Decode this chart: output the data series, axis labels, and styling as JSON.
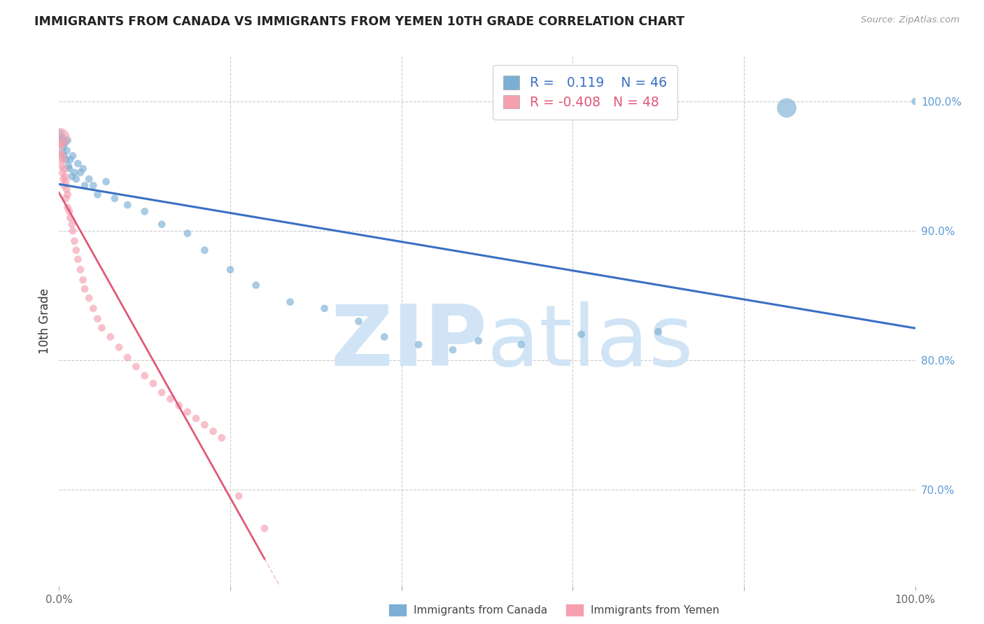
{
  "title": "IMMIGRANTS FROM CANADA VS IMMIGRANTS FROM YEMEN 10TH GRADE CORRELATION CHART",
  "source": "Source: ZipAtlas.com",
  "ylabel": "10th Grade",
  "right_ytick_labels": [
    "100.0%",
    "90.0%",
    "80.0%",
    "70.0%"
  ],
  "right_ytick_values": [
    1.0,
    0.9,
    0.8,
    0.7
  ],
  "legend_canada": "Immigrants from Canada",
  "legend_yemen": "Immigrants from Yemen",
  "R_canada": 0.119,
  "N_canada": 46,
  "R_yemen": -0.408,
  "N_yemen": 48,
  "blue_color": "#7BAFD4",
  "pink_color": "#F4A0B0",
  "trend_blue": "#3A6FC4",
  "trend_pink": "#E05878",
  "watermark_color": "#D0E4F5",
  "background_color": "#FFFFFF",
  "xlim": [
    0.0,
    1.0
  ],
  "ylim": [
    0.625,
    1.035
  ],
  "grid_color": "#CCCCCC",
  "ytick_color": "#5B9BD5",
  "xtick_color": "#666666",
  "canada_x": [
    0.001,
    0.002,
    0.003,
    0.004,
    0.004,
    0.005,
    0.006,
    0.007,
    0.008,
    0.009,
    0.01,
    0.011,
    0.012,
    0.013,
    0.015,
    0.016,
    0.018,
    0.02,
    0.022,
    0.025,
    0.028,
    0.03,
    0.035,
    0.04,
    0.045,
    0.055,
    0.065,
    0.08,
    0.1,
    0.12,
    0.15,
    0.17,
    0.2,
    0.23,
    0.27,
    0.31,
    0.35,
    0.38,
    0.42,
    0.46,
    0.49,
    0.54,
    0.61,
    0.7,
    0.85,
    1.0
  ],
  "canada_y": [
    0.975,
    0.97,
    0.968,
    0.972,
    0.96,
    0.965,
    0.958,
    0.968,
    0.955,
    0.962,
    0.97,
    0.95,
    0.948,
    0.955,
    0.942,
    0.958,
    0.945,
    0.94,
    0.952,
    0.945,
    0.948,
    0.935,
    0.94,
    0.935,
    0.928,
    0.938,
    0.925,
    0.92,
    0.915,
    0.905,
    0.898,
    0.885,
    0.87,
    0.858,
    0.845,
    0.84,
    0.83,
    0.818,
    0.812,
    0.808,
    0.815,
    0.812,
    0.82,
    0.822,
    0.995,
    1.0
  ],
  "canada_sizes": [
    80,
    60,
    60,
    60,
    60,
    60,
    60,
    60,
    60,
    60,
    60,
    60,
    60,
    60,
    60,
    60,
    60,
    60,
    60,
    60,
    60,
    60,
    60,
    60,
    60,
    60,
    60,
    60,
    60,
    60,
    60,
    60,
    60,
    60,
    60,
    60,
    60,
    60,
    60,
    60,
    60,
    60,
    60,
    60,
    400,
    60
  ],
  "yemen_x": [
    0.001,
    0.001,
    0.002,
    0.002,
    0.003,
    0.003,
    0.004,
    0.004,
    0.005,
    0.005,
    0.006,
    0.006,
    0.007,
    0.008,
    0.008,
    0.009,
    0.01,
    0.01,
    0.012,
    0.013,
    0.015,
    0.016,
    0.018,
    0.02,
    0.022,
    0.025,
    0.028,
    0.03,
    0.035,
    0.04,
    0.045,
    0.05,
    0.06,
    0.07,
    0.08,
    0.09,
    0.1,
    0.11,
    0.12,
    0.13,
    0.14,
    0.15,
    0.16,
    0.17,
    0.18,
    0.19,
    0.21,
    0.24
  ],
  "yemen_y": [
    0.972,
    0.965,
    0.96,
    0.955,
    0.968,
    0.95,
    0.958,
    0.945,
    0.955,
    0.94,
    0.948,
    0.935,
    0.942,
    0.938,
    0.925,
    0.932,
    0.928,
    0.918,
    0.915,
    0.91,
    0.905,
    0.9,
    0.892,
    0.885,
    0.878,
    0.87,
    0.862,
    0.855,
    0.848,
    0.84,
    0.832,
    0.825,
    0.818,
    0.81,
    0.802,
    0.795,
    0.788,
    0.782,
    0.775,
    0.77,
    0.765,
    0.76,
    0.755,
    0.75,
    0.745,
    0.74,
    0.695,
    0.67
  ],
  "yemen_sizes": [
    400,
    60,
    60,
    60,
    60,
    60,
    60,
    60,
    60,
    60,
    60,
    60,
    60,
    60,
    60,
    60,
    60,
    60,
    60,
    60,
    60,
    60,
    60,
    60,
    60,
    60,
    60,
    60,
    60,
    60,
    60,
    60,
    60,
    60,
    60,
    60,
    60,
    60,
    60,
    60,
    60,
    60,
    60,
    60,
    60,
    60,
    60,
    60
  ]
}
